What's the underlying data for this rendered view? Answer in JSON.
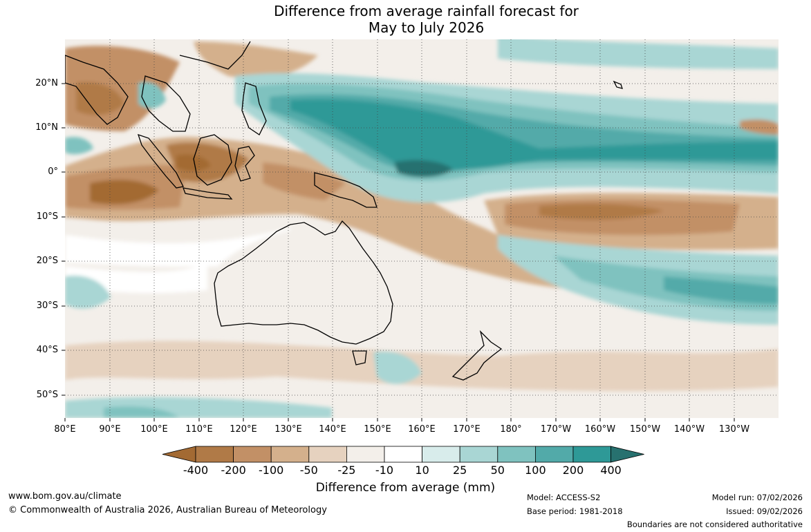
{
  "title_line1": "Difference from average rainfall forecast for",
  "title_line2": "May to July 2026",
  "lat_labels": [
    "20°N",
    "10°N",
    "0°",
    "10°S",
    "20°S",
    "30°S",
    "40°S",
    "50°S"
  ],
  "lon_labels": [
    "80°E",
    "90°E",
    "100°E",
    "110°E",
    "120°E",
    "130°E",
    "140°E",
    "150°E",
    "160°E",
    "170°E",
    "180°",
    "170°W",
    "160°W",
    "150°W",
    "140°W",
    "130°W"
  ],
  "legend": {
    "labels": [
      "-400",
      "-200",
      "-100",
      "-50",
      "-25",
      "-10",
      "10",
      "25",
      "50",
      "100",
      "200",
      "400"
    ],
    "colors": [
      "#a36a33",
      "#b07a47",
      "#c29066",
      "#d4b08c",
      "#e6d2bf",
      "#f3efea",
      "#ffffff",
      "#d8eceb",
      "#a9d6d4",
      "#7fc2bf",
      "#52aaa9",
      "#2e9997",
      "#27716f"
    ],
    "title": "Difference from average (mm)"
  },
  "footer": {
    "website": "www.bom.gov.au/climate",
    "copyright": "© Commonwealth of Australia 2026, Australian Bureau of Meteorology",
    "model": "Model: ACCESS-S2",
    "base_period": "Base period: 1981-2018",
    "model_run": "Model run: 07/02/2026",
    "issued": "Issued: 09/02/2026",
    "disclaimer": "Boundaries are not considered authoritative"
  }
}
